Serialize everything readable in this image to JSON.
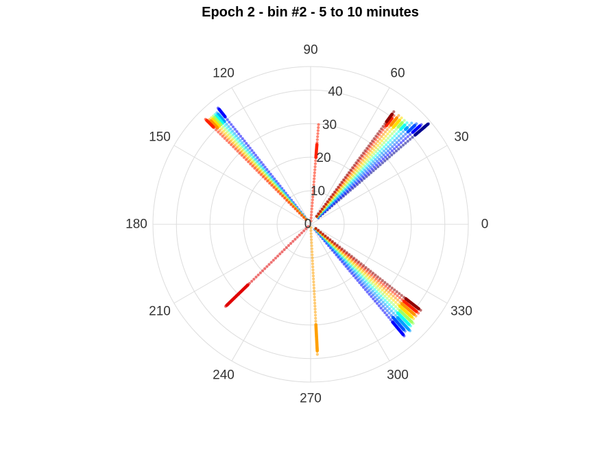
{
  "chart_data": {
    "type": "scatter",
    "subtype": "polar",
    "title": "Epoch 2 - bin #2 - 5 to 10 minutes",
    "angle_unit": "degrees",
    "angle_ticks": [
      "0",
      "30",
      "60",
      "90",
      "120",
      "150",
      "180",
      "210",
      "240",
      "270",
      "300",
      "330"
    ],
    "radius_ticks": [
      "0",
      "10",
      "20",
      "30",
      "40"
    ],
    "rlim": [
      0,
      47
    ],
    "grid": true,
    "colormap": "jet",
    "series": [
      {
        "angle": 40.5,
        "values": [
          [
            3,
            47
          ],
          [
            41,
            46
          ],
          [
            44,
            45
          ]
        ],
        "color": "#00008f"
      },
      {
        "angle": 42.0,
        "values": [
          [
            3,
            45
          ],
          [
            41,
            44
          ]
        ],
        "color": "#0000ff"
      },
      {
        "angle": 43.5,
        "values": [
          [
            3,
            44
          ],
          [
            40,
            43
          ]
        ],
        "color": "#0050ff"
      },
      {
        "angle": 45.0,
        "values": [
          [
            3,
            43
          ],
          [
            40,
            41
          ]
        ],
        "color": "#009fff"
      },
      {
        "angle": 46.5,
        "values": [
          [
            3,
            42
          ],
          [
            39,
            41
          ]
        ],
        "color": "#10ffef"
      },
      {
        "angle": 48.0,
        "values": [
          [
            3,
            42
          ],
          [
            39,
            41
          ]
        ],
        "color": "#9fff60"
      },
      {
        "angle": 49.5,
        "values": [
          [
            3,
            42
          ],
          [
            38,
            41
          ]
        ],
        "color": "#ffdf00"
      },
      {
        "angle": 51.0,
        "values": [
          [
            3,
            42
          ],
          [
            38,
            41
          ]
        ],
        "color": "#ff9000"
      },
      {
        "angle": 52.5,
        "values": [
          [
            3,
            41
          ],
          [
            37,
            40
          ]
        ],
        "color": "#ff2000"
      },
      {
        "angle": 53.5,
        "values": [
          [
            3,
            42
          ],
          [
            38,
            41
          ]
        ],
        "color": "#8f0000"
      },
      {
        "angle": 128.5,
        "values": [
          [
            2,
            45
          ],
          [
            41,
            44
          ]
        ],
        "color": "#0000ff"
      },
      {
        "angle": 130.0,
        "values": [
          [
            2,
            44
          ],
          [
            40,
            43
          ]
        ],
        "color": "#009fff"
      },
      {
        "angle": 131.0,
        "values": [
          [
            2,
            44
          ],
          [
            40,
            43
          ]
        ],
        "color": "#10ffef"
      },
      {
        "angle": 132.0,
        "values": [
          [
            2,
            44
          ],
          [
            40,
            43
          ]
        ],
        "color": "#9fff60"
      },
      {
        "angle": 133.0,
        "values": [
          [
            2,
            44
          ],
          [
            40,
            43
          ]
        ],
        "color": "#ffdf00"
      },
      {
        "angle": 134.0,
        "values": [
          [
            2,
            44
          ],
          [
            40,
            43
          ]
        ],
        "color": "#ff9000"
      },
      {
        "angle": 135.0,
        "values": [
          [
            2,
            45
          ],
          [
            41,
            44
          ]
        ],
        "color": "#ff2000"
      },
      {
        "angle": 85.5,
        "values": [
          [
            1,
            30
          ],
          [
            20,
            24
          ]
        ],
        "color": "#ff2000"
      },
      {
        "angle": 224.0,
        "values": [
          [
            1,
            36
          ],
          [
            26,
            35
          ]
        ],
        "color": "#e00000"
      },
      {
        "angle": 273.0,
        "values": [
          [
            1,
            39
          ],
          [
            30,
            38
          ]
        ],
        "color": "#ffa000"
      },
      {
        "angle": 310.0,
        "values": [
          [
            2,
            44
          ],
          [
            38,
            43
          ]
        ],
        "color": "#0000ff"
      },
      {
        "angle": 311.5,
        "values": [
          [
            2,
            43
          ],
          [
            37,
            42
          ]
        ],
        "color": "#0050ff"
      },
      {
        "angle": 313.0,
        "values": [
          [
            2,
            44
          ],
          [
            38,
            43
          ]
        ],
        "color": "#009fff"
      },
      {
        "angle": 314.5,
        "values": [
          [
            2,
            43
          ],
          [
            37,
            42
          ]
        ],
        "color": "#10ffef"
      },
      {
        "angle": 316.0,
        "values": [
          [
            2,
            43
          ],
          [
            37,
            42
          ]
        ],
        "color": "#9fff60"
      },
      {
        "angle": 317.5,
        "values": [
          [
            2,
            42
          ],
          [
            36,
            41
          ]
        ],
        "color": "#ffdf00"
      },
      {
        "angle": 319.0,
        "values": [
          [
            2,
            42
          ],
          [
            36,
            41
          ]
        ],
        "color": "#ff9000"
      },
      {
        "angle": 320.5,
        "values": [
          [
            2,
            42
          ],
          [
            36,
            41
          ]
        ],
        "color": "#ff2000"
      },
      {
        "angle": 322.0,
        "values": [
          [
            2,
            42
          ],
          [
            36,
            41
          ]
        ],
        "color": "#8f0000"
      }
    ]
  }
}
